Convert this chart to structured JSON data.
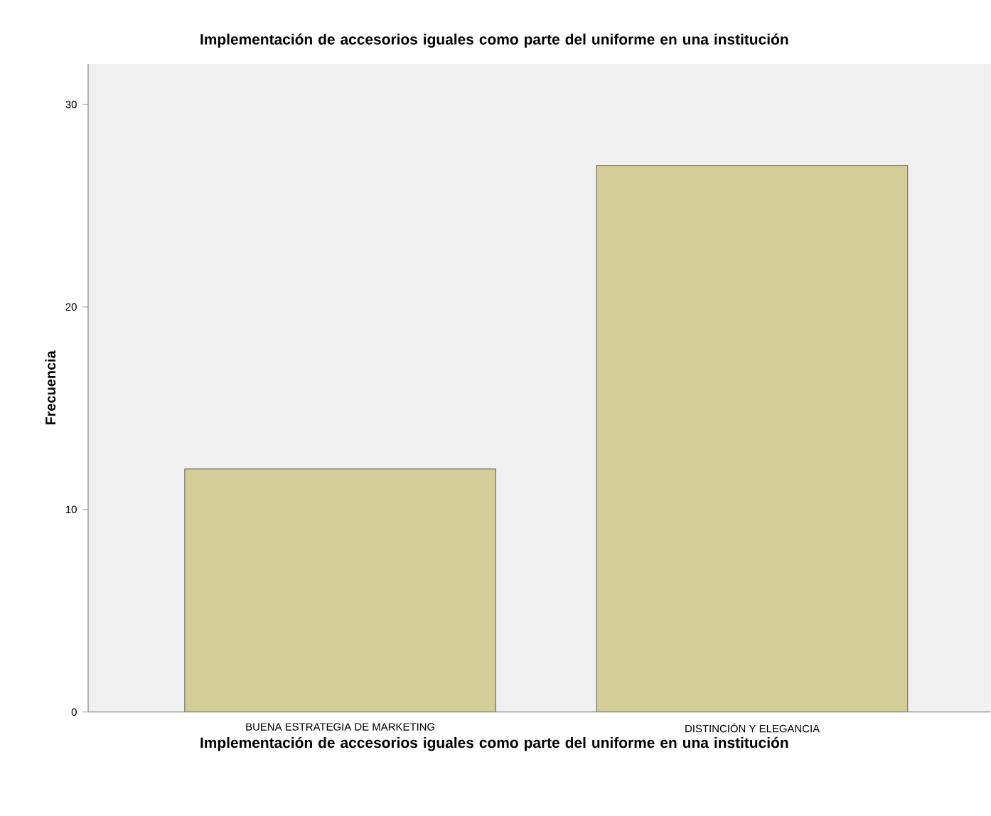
{
  "chart_data": {
    "type": "bar",
    "title": "Implementación de accesorios iguales como parte del uniforme en una institución",
    "xlabel": "Implementación de accesorios iguales como parte del uniforme en una institución",
    "ylabel": "Frecuencia",
    "categories": [
      "BUENA ESTRATEGIA DE MARKETING",
      "DISTINCIÓN Y ELEGANCIA"
    ],
    "values": [
      12,
      27
    ],
    "color": "#d3ce97",
    "ylim": [
      0,
      32
    ],
    "yticks": [
      0,
      10,
      20,
      30
    ],
    "grid": false
  }
}
